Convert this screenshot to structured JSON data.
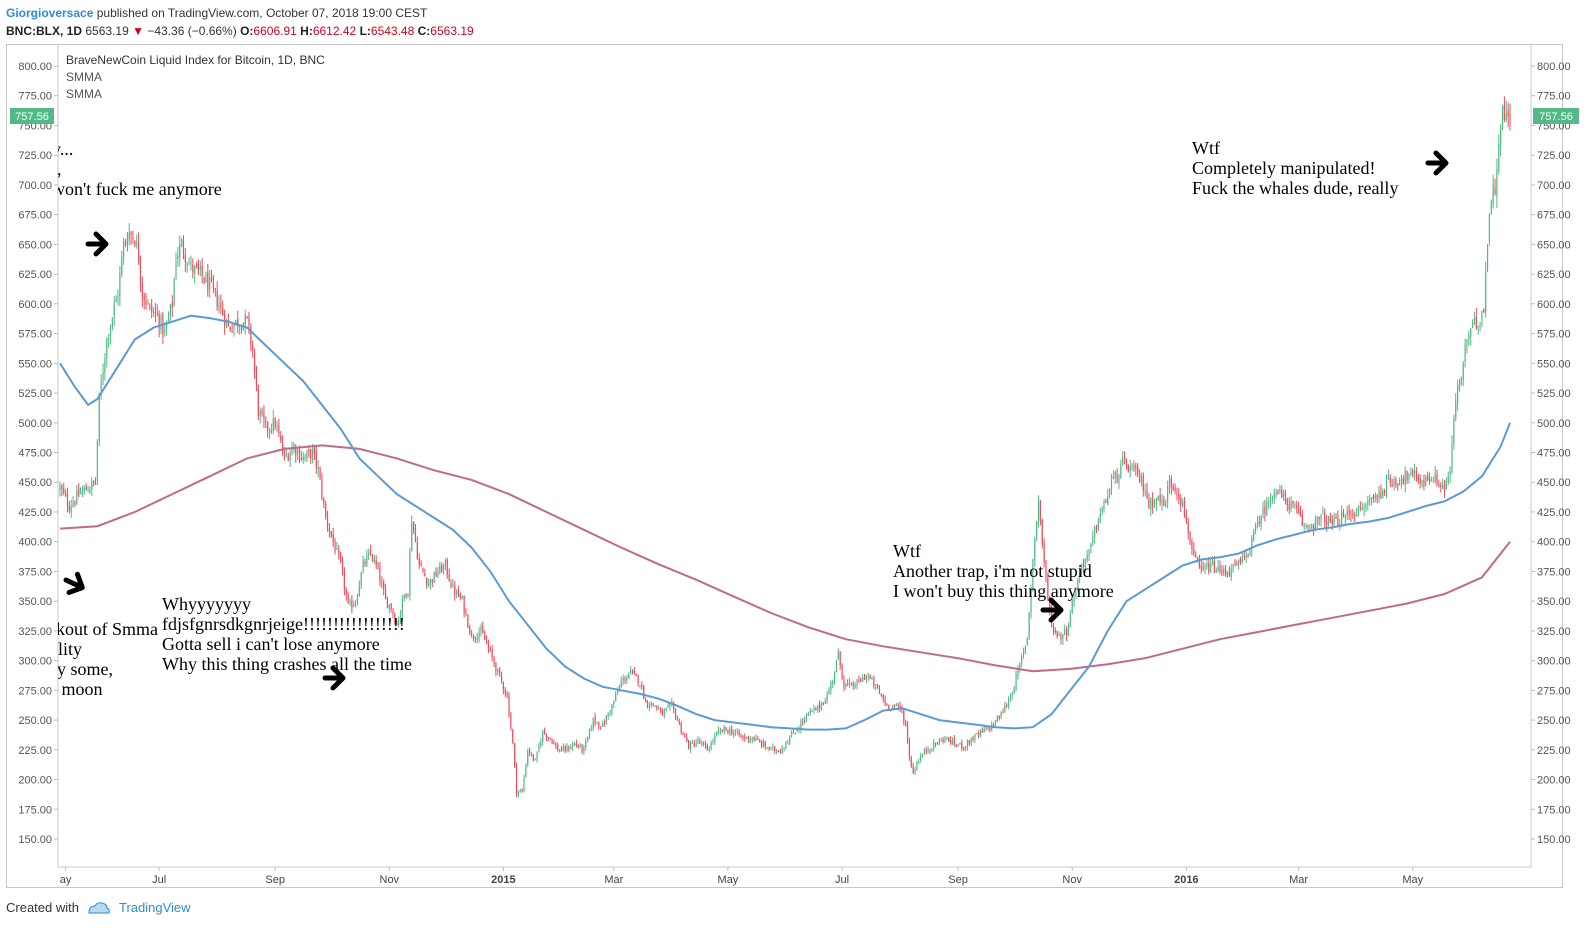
{
  "header": {
    "author": "Giorgioversace",
    "published": "published on TradingView.com, October 07, 2018 19:00 CEST",
    "symbol": "BNC:BLX, 1D",
    "last": "6563.19",
    "change": "−43.36 (−0.66%)",
    "o_label": "O:",
    "o_value": "6606.91",
    "h_label": "H:",
    "h_value": "6612.42",
    "l_label": "L:",
    "l_value": "6543.48",
    "c_label": "C:",
    "c_value": "6563.19"
  },
  "legend": {
    "title": "BraveNewCoin Liquid Index for Bitcoin, 1D, BNC",
    "ma1": "SMMA",
    "ma2": "SMMA"
  },
  "price_badge": "757.56",
  "footer": {
    "created_with": "Created with",
    "brand": "TradingView"
  },
  "colors": {
    "up": "#53b987",
    "down": "#eb4d5c",
    "smma_fast": "#5b9bd5",
    "smma_slow": "#c0698f",
    "badge": "#53b987"
  },
  "chart_data": {
    "type": "candlestick",
    "y_ticks": [
      "800.00",
      "775.00",
      "750.00",
      "725.00",
      "700.00",
      "675.00",
      "650.00",
      "625.00",
      "600.00",
      "575.00",
      "550.00",
      "525.00",
      "500.00",
      "475.00",
      "450.00",
      "425.00",
      "400.00",
      "375.00",
      "350.00",
      "325.00",
      "300.00",
      "275.00",
      "250.00",
      "225.00",
      "200.00",
      "175.00",
      "150.00"
    ],
    "ylim": [
      130,
      810
    ],
    "x_ticks": [
      "ay",
      "Jul",
      "Sep",
      "Nov",
      "2015",
      "Mar",
      "May",
      "Jul",
      "Sep",
      "Nov",
      "2016",
      "Mar",
      "May"
    ],
    "x_tick_days": [
      3,
      53,
      115,
      176,
      237,
      296,
      357,
      418,
      480,
      541,
      602,
      662,
      723
    ],
    "x_range_days": [
      0,
      775
    ],
    "close_path": [
      [
        0,
        445
      ],
      [
        5,
        430
      ],
      [
        10,
        440
      ],
      [
        15,
        445
      ],
      [
        19,
        450
      ],
      [
        21,
        520
      ],
      [
        25,
        570
      ],
      [
        28,
        590
      ],
      [
        31,
        610
      ],
      [
        34,
        650
      ],
      [
        37,
        660
      ],
      [
        40,
        655
      ],
      [
        42,
        640
      ],
      [
        44,
        610
      ],
      [
        48,
        595
      ],
      [
        52,
        590
      ],
      [
        56,
        575
      ],
      [
        60,
        600
      ],
      [
        62,
        640
      ],
      [
        65,
        650
      ],
      [
        70,
        630
      ],
      [
        75,
        625
      ],
      [
        80,
        615
      ],
      [
        85,
        600
      ],
      [
        90,
        580
      ],
      [
        95,
        585
      ],
      [
        100,
        585
      ],
      [
        103,
        560
      ],
      [
        106,
        510
      ],
      [
        110,
        495
      ],
      [
        115,
        500
      ],
      [
        120,
        470
      ],
      [
        125,
        480
      ],
      [
        130,
        470
      ],
      [
        135,
        475
      ],
      [
        138,
        460
      ],
      [
        140,
        440
      ],
      [
        142,
        420
      ],
      [
        146,
        400
      ],
      [
        150,
        380
      ],
      [
        154,
        345
      ],
      [
        158,
        350
      ],
      [
        162,
        380
      ],
      [
        166,
        390
      ],
      [
        170,
        375
      ],
      [
        174,
        350
      ],
      [
        177,
        345
      ],
      [
        180,
        330
      ],
      [
        184,
        355
      ],
      [
        186,
        360
      ],
      [
        188,
        420
      ],
      [
        192,
        380
      ],
      [
        197,
        365
      ],
      [
        202,
        375
      ],
      [
        206,
        380
      ],
      [
        210,
        360
      ],
      [
        215,
        350
      ],
      [
        220,
        320
      ],
      [
        225,
        325
      ],
      [
        229,
        310
      ],
      [
        234,
        290
      ],
      [
        239,
        270
      ],
      [
        242,
        230
      ],
      [
        244,
        190
      ],
      [
        247,
        190
      ],
      [
        250,
        225
      ],
      [
        254,
        215
      ],
      [
        258,
        240
      ],
      [
        262,
        235
      ],
      [
        266,
        225
      ],
      [
        270,
        225
      ],
      [
        275,
        230
      ],
      [
        280,
        225
      ],
      [
        285,
        250
      ],
      [
        290,
        245
      ],
      [
        295,
        262
      ],
      [
        300,
        282
      ],
      [
        305,
        290
      ],
      [
        310,
        282
      ],
      [
        313,
        265
      ],
      [
        318,
        262
      ],
      [
        322,
        255
      ],
      [
        327,
        262
      ],
      [
        332,
        242
      ],
      [
        336,
        228
      ],
      [
        341,
        232
      ],
      [
        346,
        225
      ],
      [
        351,
        238
      ],
      [
        355,
        242
      ],
      [
        360,
        240
      ],
      [
        365,
        235
      ],
      [
        370,
        235
      ],
      [
        375,
        230
      ],
      [
        380,
        225
      ],
      [
        385,
        225
      ],
      [
        390,
        235
      ],
      [
        395,
        245
      ],
      [
        400,
        255
      ],
      [
        405,
        260
      ],
      [
        410,
        270
      ],
      [
        413,
        285
      ],
      [
        416,
        305
      ],
      [
        419,
        280
      ],
      [
        423,
        278
      ],
      [
        427,
        282
      ],
      [
        431,
        288
      ],
      [
        435,
        280
      ],
      [
        439,
        270
      ],
      [
        442,
        262
      ],
      [
        446,
        262
      ],
      [
        450,
        258
      ],
      [
        452,
        245
      ],
      [
        454,
        220
      ],
      [
        456,
        205
      ],
      [
        458,
        215
      ],
      [
        463,
        225
      ],
      [
        468,
        230
      ],
      [
        473,
        235
      ],
      [
        478,
        230
      ],
      [
        483,
        228
      ],
      [
        488,
        235
      ],
      [
        493,
        240
      ],
      [
        498,
        245
      ],
      [
        503,
        255
      ],
      [
        508,
        270
      ],
      [
        512,
        290
      ],
      [
        517,
        320
      ],
      [
        520,
        385
      ],
      [
        523,
        435
      ],
      [
        526,
        380
      ],
      [
        528,
        355
      ],
      [
        530,
        330
      ],
      [
        534,
        320
      ],
      [
        538,
        325
      ],
      [
        542,
        355
      ],
      [
        546,
        380
      ],
      [
        550,
        390
      ],
      [
        555,
        420
      ],
      [
        558,
        430
      ],
      [
        562,
        450
      ],
      [
        565,
        455
      ],
      [
        568,
        465
      ],
      [
        572,
        462
      ],
      [
        576,
        455
      ],
      [
        580,
        445
      ],
      [
        582,
        430
      ],
      [
        586,
        438
      ],
      [
        590,
        430
      ],
      [
        593,
        450
      ],
      [
        597,
        445
      ],
      [
        600,
        430
      ],
      [
        603,
        410
      ],
      [
        606,
        385
      ],
      [
        610,
        375
      ],
      [
        615,
        380
      ],
      [
        620,
        375
      ],
      [
        625,
        375
      ],
      [
        629,
        380
      ],
      [
        633,
        385
      ],
      [
        637,
        400
      ],
      [
        641,
        420
      ],
      [
        645,
        430
      ],
      [
        649,
        445
      ],
      [
        653,
        438
      ],
      [
        657,
        432
      ],
      [
        661,
        425
      ],
      [
        665,
        412
      ],
      [
        670,
        415
      ],
      [
        675,
        420
      ],
      [
        680,
        415
      ],
      [
        685,
        420
      ],
      [
        690,
        425
      ],
      [
        695,
        425
      ],
      [
        700,
        435
      ],
      [
        705,
        440
      ],
      [
        710,
        450
      ],
      [
        715,
        452
      ],
      [
        720,
        455
      ],
      [
        725,
        455
      ],
      [
        729,
        450
      ],
      [
        733,
        455
      ],
      [
        737,
        450
      ],
      [
        740,
        445
      ],
      [
        743,
        460
      ],
      [
        746,
        520
      ],
      [
        749,
        540
      ],
      [
        752,
        570
      ],
      [
        755,
        580
      ],
      [
        758,
        585
      ],
      [
        761,
        600
      ],
      [
        764,
        680
      ],
      [
        767,
        700
      ],
      [
        769,
        740
      ],
      [
        771,
        760
      ],
      [
        773,
        757
      ]
    ],
    "smma_fast": [
      [
        0,
        550
      ],
      [
        8,
        530
      ],
      [
        15,
        515
      ],
      [
        20,
        520
      ],
      [
        30,
        545
      ],
      [
        40,
        570
      ],
      [
        50,
        580
      ],
      [
        60,
        585
      ],
      [
        70,
        590
      ],
      [
        80,
        588
      ],
      [
        90,
        585
      ],
      [
        100,
        580
      ],
      [
        110,
        565
      ],
      [
        120,
        550
      ],
      [
        130,
        535
      ],
      [
        140,
        515
      ],
      [
        150,
        495
      ],
      [
        160,
        470
      ],
      [
        170,
        455
      ],
      [
        180,
        440
      ],
      [
        190,
        430
      ],
      [
        200,
        420
      ],
      [
        210,
        410
      ],
      [
        220,
        395
      ],
      [
        230,
        375
      ],
      [
        240,
        350
      ],
      [
        250,
        330
      ],
      [
        260,
        310
      ],
      [
        270,
        295
      ],
      [
        280,
        285
      ],
      [
        290,
        278
      ],
      [
        300,
        275
      ],
      [
        310,
        272
      ],
      [
        320,
        268
      ],
      [
        330,
        262
      ],
      [
        340,
        255
      ],
      [
        350,
        250
      ],
      [
        360,
        248
      ],
      [
        370,
        246
      ],
      [
        380,
        244
      ],
      [
        390,
        243
      ],
      [
        400,
        242
      ],
      [
        410,
        242
      ],
      [
        420,
        243
      ],
      [
        430,
        250
      ],
      [
        440,
        258
      ],
      [
        450,
        260
      ],
      [
        460,
        255
      ],
      [
        470,
        250
      ],
      [
        480,
        248
      ],
      [
        490,
        246
      ],
      [
        500,
        244
      ],
      [
        510,
        243
      ],
      [
        520,
        244
      ],
      [
        530,
        255
      ],
      [
        540,
        275
      ],
      [
        550,
        295
      ],
      [
        560,
        325
      ],
      [
        570,
        350
      ],
      [
        580,
        360
      ],
      [
        590,
        370
      ],
      [
        600,
        380
      ],
      [
        610,
        385
      ],
      [
        620,
        387
      ],
      [
        630,
        390
      ],
      [
        640,
        397
      ],
      [
        650,
        402
      ],
      [
        660,
        406
      ],
      [
        670,
        410
      ],
      [
        680,
        412
      ],
      [
        690,
        415
      ],
      [
        700,
        417
      ],
      [
        710,
        420
      ],
      [
        720,
        425
      ],
      [
        730,
        430
      ],
      [
        740,
        434
      ],
      [
        750,
        442
      ],
      [
        760,
        455
      ],
      [
        770,
        480
      ],
      [
        775,
        500
      ]
    ],
    "smma_slow": [
      [
        0,
        411
      ],
      [
        20,
        413
      ],
      [
        40,
        425
      ],
      [
        60,
        440
      ],
      [
        80,
        455
      ],
      [
        100,
        470
      ],
      [
        120,
        478
      ],
      [
        140,
        481
      ],
      [
        160,
        478
      ],
      [
        180,
        470
      ],
      [
        200,
        460
      ],
      [
        220,
        452
      ],
      [
        240,
        440
      ],
      [
        260,
        425
      ],
      [
        280,
        410
      ],
      [
        300,
        395
      ],
      [
        320,
        381
      ],
      [
        340,
        368
      ],
      [
        360,
        354
      ],
      [
        380,
        340
      ],
      [
        400,
        328
      ],
      [
        420,
        318
      ],
      [
        440,
        312
      ],
      [
        460,
        307
      ],
      [
        480,
        302
      ],
      [
        500,
        296
      ],
      [
        520,
        291
      ],
      [
        540,
        293
      ],
      [
        560,
        297
      ],
      [
        580,
        302
      ],
      [
        600,
        310
      ],
      [
        620,
        318
      ],
      [
        640,
        324
      ],
      [
        660,
        330
      ],
      [
        680,
        336
      ],
      [
        700,
        342
      ],
      [
        720,
        348
      ],
      [
        740,
        356
      ],
      [
        760,
        370
      ],
      [
        775,
        400
      ]
    ]
  },
  "annotations": [
    {
      "lines": [
        "y...",
        "t,",
        "won't fuck me anymore"
      ]
    },
    {
      "lines": [
        "akout of Smma",
        "tility",
        "ny some,",
        "o moon"
      ]
    },
    {
      "lines": [
        "Whyyyyyyy",
        "fdjsfgnrsdkgnrjeige!!!!!!!!!!!!!!!!!",
        "Gotta sell i can't lose anymore",
        "Why this thing crashes all the time"
      ]
    },
    {
      "lines": [
        "Wtf",
        "Another trap, i'm not stupid",
        "I won't buy this thing anymore"
      ]
    },
    {
      "lines": [
        "Wtf",
        "Completely manipulated!",
        "Fuck the whales dude, really"
      ]
    }
  ]
}
